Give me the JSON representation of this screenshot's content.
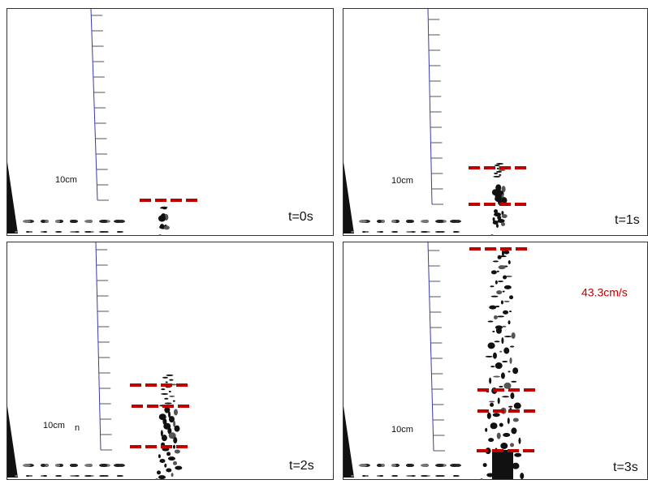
{
  "panels": [
    {
      "scale_label": "10cm",
      "time": "t=0s"
    },
    {
      "scale_label": "10cm",
      "time": "t=1s"
    },
    {
      "scale_label": "10cm",
      "stray_text": "n",
      "time": "t=2s"
    },
    {
      "scale_label": "10cm",
      "annotation": "43.3cm/s",
      "time": "t=3s"
    }
  ]
}
